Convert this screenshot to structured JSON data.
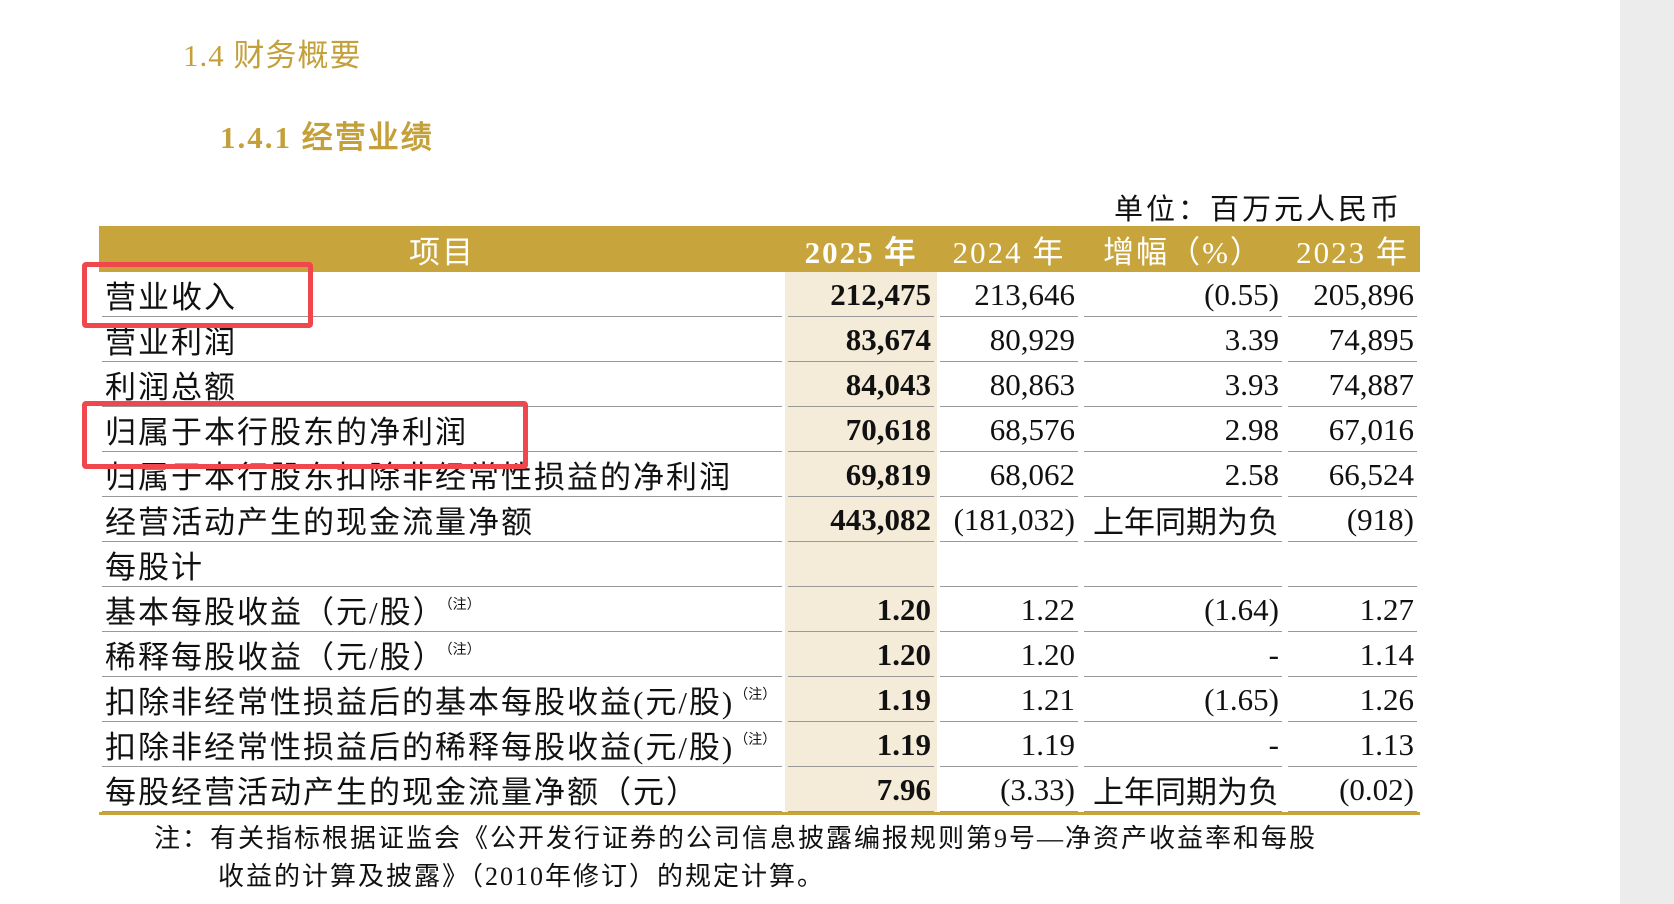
{
  "heading": "1.4  财务概要",
  "subheading": "1.4.1  经营业绩",
  "unit": "单位：百万元人民币",
  "table": {
    "header": [
      "项目",
      "2025 年",
      "2024 年",
      "增幅（%）",
      "2023 年"
    ],
    "rows": [
      {
        "label": "营业收入",
        "values": [
          "212,475",
          "213,646",
          "(0.55)",
          "205,896"
        ]
      },
      {
        "label": "营业利润",
        "values": [
          "83,674",
          "80,929",
          "3.39",
          "74,895"
        ]
      },
      {
        "label": "利润总额",
        "values": [
          "84,043",
          "80,863",
          "3.93",
          "74,887"
        ]
      },
      {
        "label": "归属于本行股东的净利润",
        "values": [
          "70,618",
          "68,576",
          "2.98",
          "67,016"
        ]
      },
      {
        "label": "归属于本行股东扣除非经常性损益的净利润",
        "values": [
          "69,819",
          "68,062",
          "2.58",
          "66,524"
        ]
      },
      {
        "label": "经营活动产生的现金流量净额",
        "values": [
          "443,082",
          "(181,032)",
          "上年同期为负",
          "(918)"
        ]
      },
      {
        "label": "每股计",
        "values": []
      },
      {
        "label": "基本每股收益（元/股）",
        "note": "（注）",
        "values": [
          "1.20",
          "1.22",
          "(1.64)",
          "1.27"
        ]
      },
      {
        "label": "稀释每股收益（元/股）",
        "note": "（注）",
        "values": [
          "1.20",
          "1.20",
          "-",
          "1.14"
        ]
      },
      {
        "label": "扣除非经常性损益后的基本每股收益(元/股)",
        "note": "（注）",
        "values": [
          "1.19",
          "1.21",
          "(1.65)",
          "1.26"
        ]
      },
      {
        "label": "扣除非经常性损益后的稀释每股收益(元/股)",
        "note": "（注）",
        "values": [
          "1.19",
          "1.19",
          "-",
          "1.13"
        ]
      },
      {
        "label": "每股经营活动产生的现金流量净额（元）",
        "values": [
          "7.96",
          "(3.33)",
          "上年同期为负",
          "(0.02)"
        ]
      }
    ]
  },
  "note": [
    "注：有关指标根据证监会《公开发行证券的公司信息披露编报规则第9号—净资产收益率和每股",
    "收益的计算及披露》（2010年修订）的规定计算。"
  ]
}
